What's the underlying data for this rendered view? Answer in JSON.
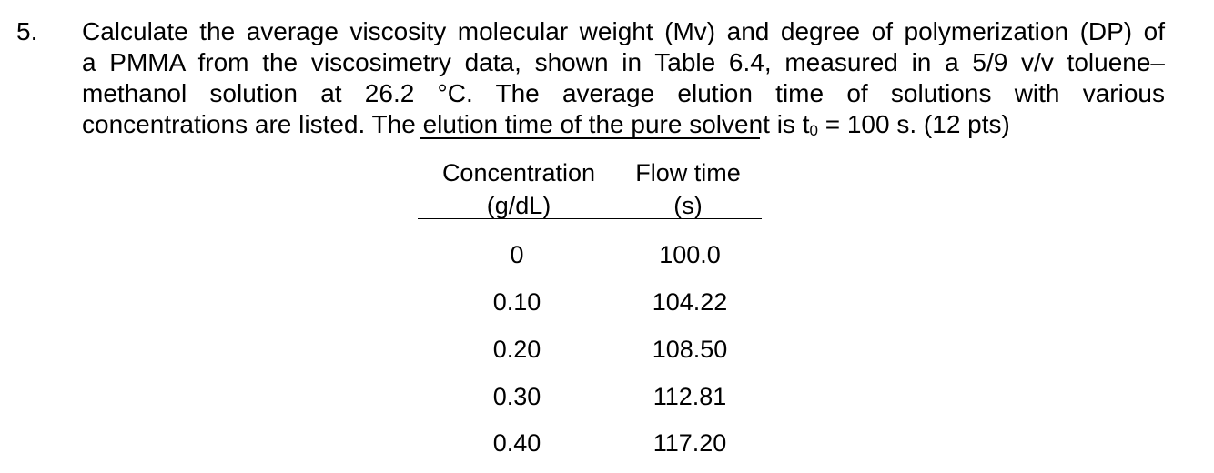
{
  "question": {
    "number": "5.",
    "lines": [
      "Calculate the average viscosity molecular weight (Mv) and degree of polymerization (DP) of",
      "a PMMA from the viscosimetry data, shown in Table 6.4, measured in a 5/9 v/v toluene–",
      "methanol solution at 26.2 °C. The average elution time of solutions with various"
    ],
    "last_line_before": "concentrations are listed. The elution time of the pure solvent is t",
    "subscript": "0",
    "last_line_after": " = 100 s. (12 pts)"
  },
  "table": {
    "headers": [
      {
        "line1": "Concentration",
        "line2": "(g/dL)"
      },
      {
        "line1": "Flow time",
        "line2": "(s)"
      }
    ],
    "rows": [
      {
        "concentration": "0",
        "flow_time": "100.0"
      },
      {
        "concentration": "0.10",
        "flow_time": "104.22"
      },
      {
        "concentration": "0.20",
        "flow_time": "108.50"
      },
      {
        "concentration": "0.30",
        "flow_time": "112.81"
      },
      {
        "concentration": "0.40",
        "flow_time": "117.20"
      }
    ]
  }
}
